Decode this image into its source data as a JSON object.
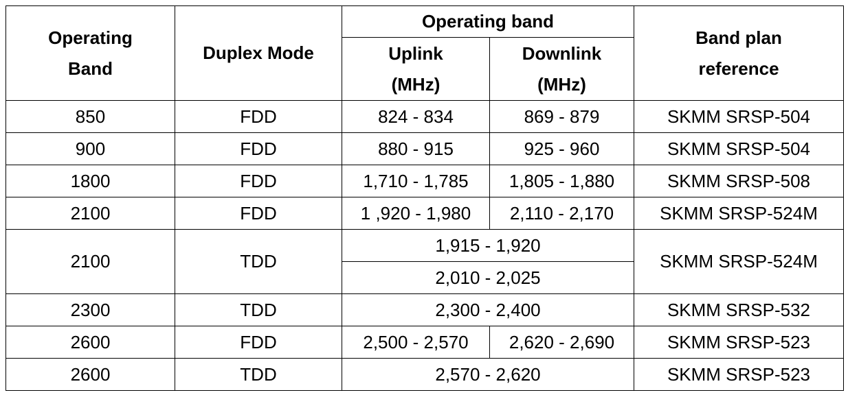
{
  "table": {
    "header": {
      "operating_band": "Operating Band",
      "duplex_mode": "Duplex Mode",
      "band_group": "Operating band",
      "uplink": "Uplink (MHz)",
      "downlink": "Downlink (MHz)",
      "band_plan": "Band plan reference"
    },
    "rows": [
      [
        "850",
        "FDD",
        "824 - 834",
        "869 - 879",
        "SKMM SRSP-504"
      ],
      [
        "900",
        "FDD",
        "880 - 915",
        "925 - 960",
        "SKMM SRSP-504"
      ],
      [
        "1800",
        "FDD",
        "1,710 - 1,785",
        "1,805 - 1,880",
        "SKMM SRSP-508"
      ],
      [
        "2100",
        "FDD",
        "1 ,920 - 1,980",
        "2,110 - 2,170",
        "SKMM SRSP-524M"
      ],
      [
        "2100",
        "TDD",
        "1,915 - 1,920",
        "SKMM SRSP-524M"
      ],
      [
        "2,010 - 2,025"
      ],
      [
        "2300",
        "TDD",
        "2,300 - 2,400",
        "SKMM SRSP-532"
      ],
      [
        "2600",
        "FDD",
        "2,500 - 2,570",
        "2,620 - 2,690",
        "SKMM SRSP-523"
      ],
      [
        "2600",
        "TDD",
        "2,570 - 2,620",
        "SKMM SRSP-523"
      ]
    ]
  }
}
